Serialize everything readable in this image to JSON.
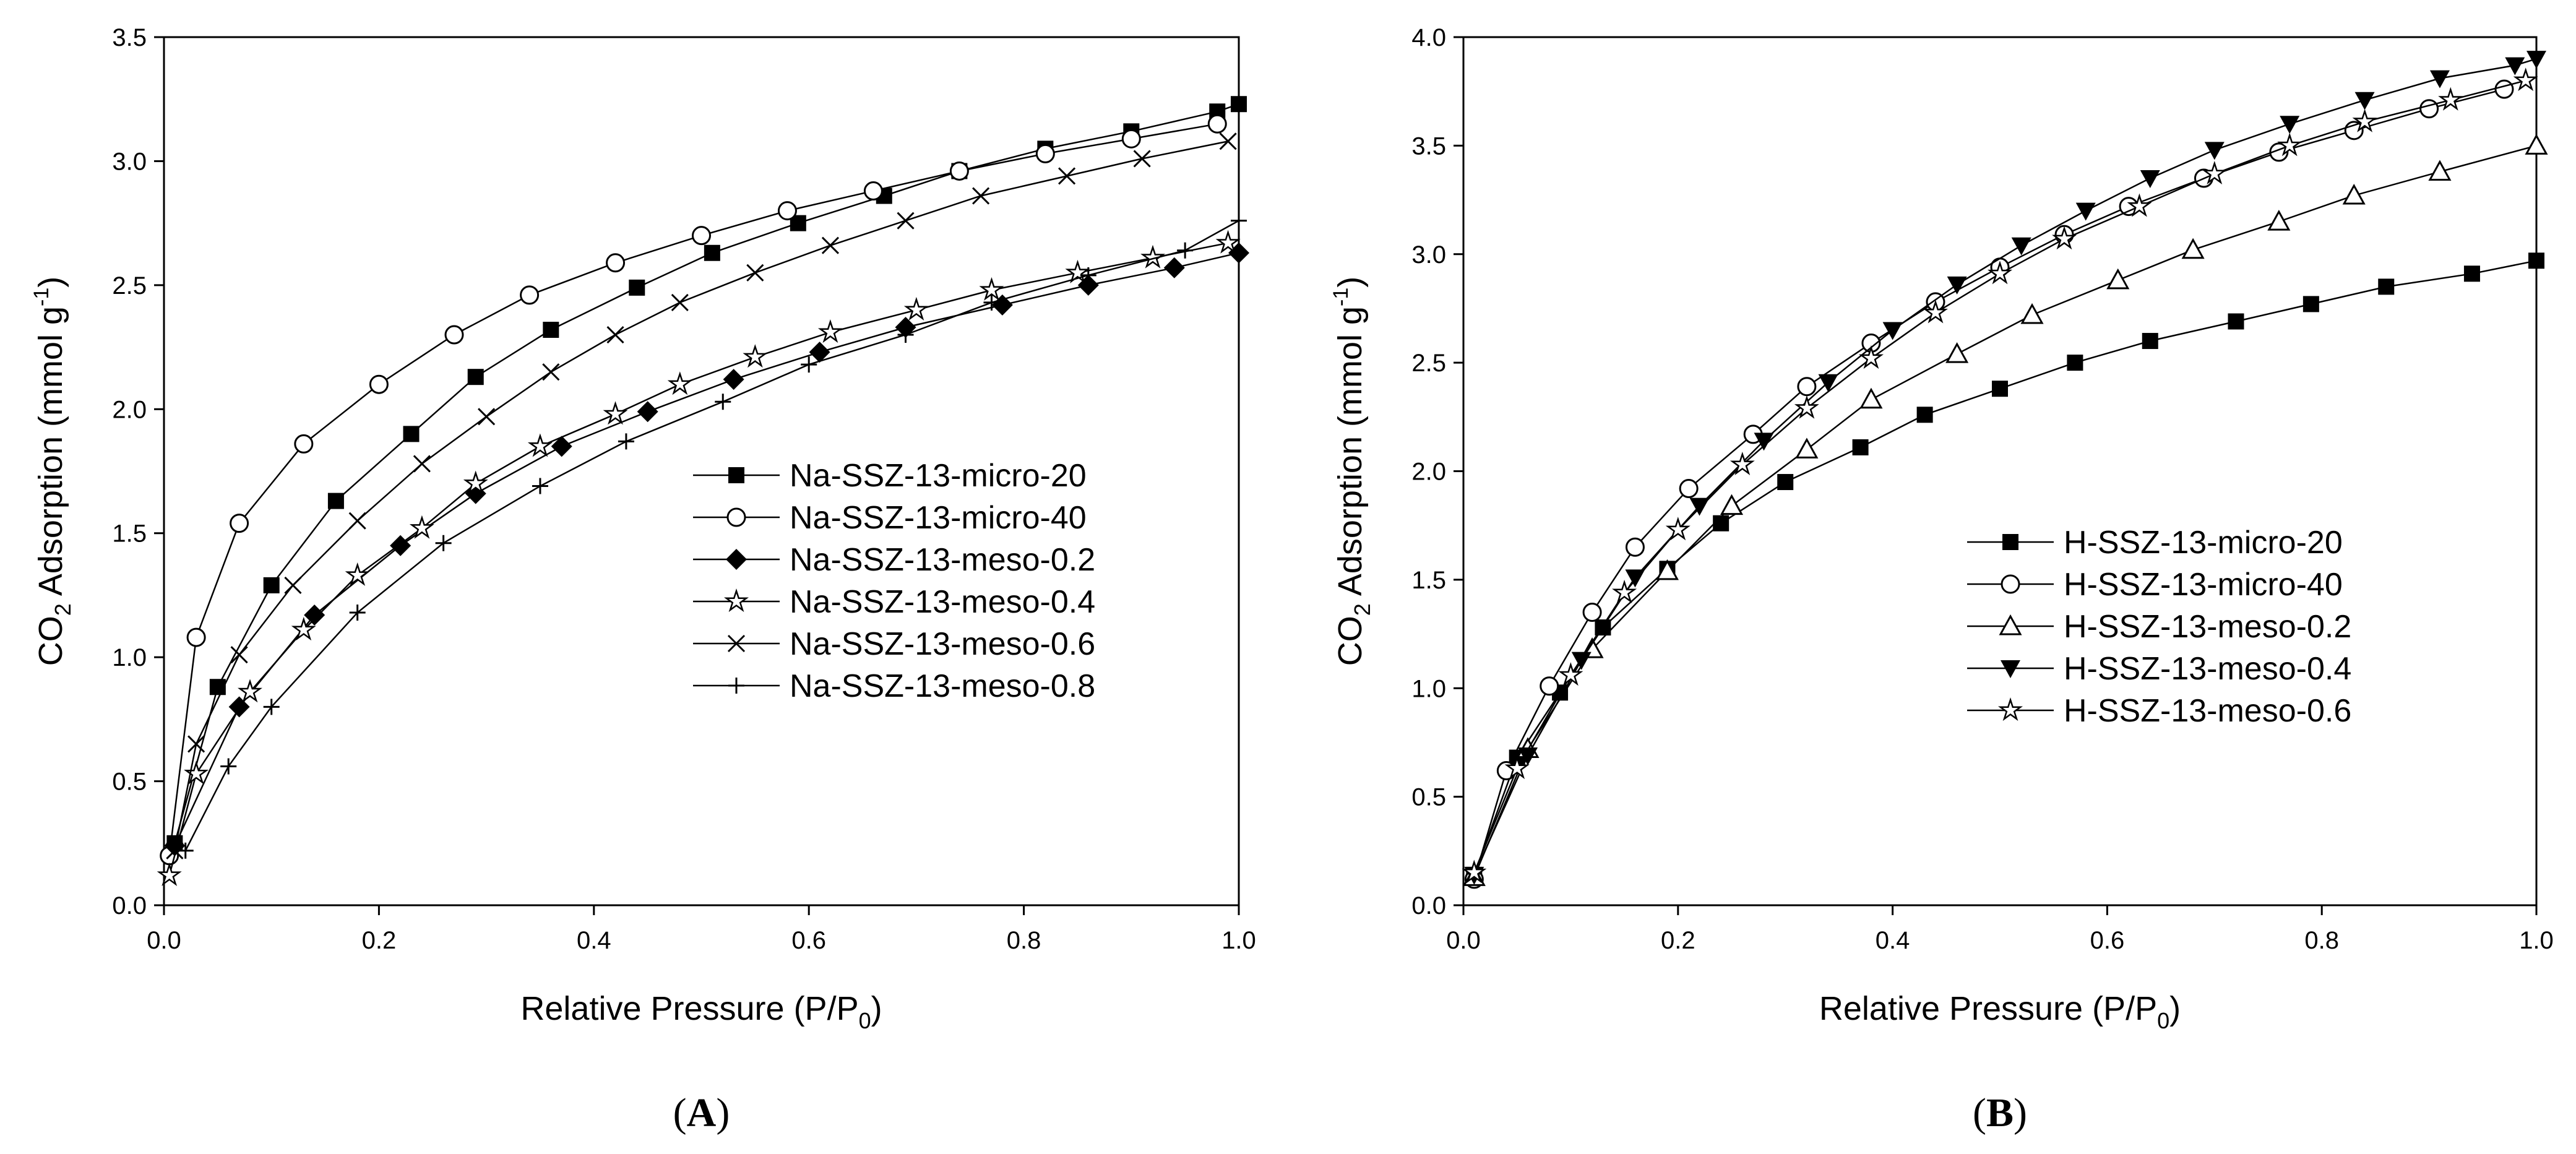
{
  "chart_data": [
    {
      "type": "line",
      "panel_label": "A",
      "xlabel": "Relative Pressure (P/P0)",
      "ylabel": "CO2 Adsorption (mmol g-1)",
      "xlim": [
        0,
        1.0
      ],
      "ylim": [
        0,
        3.5
      ],
      "xticks": [
        "0.0",
        "0.2",
        "0.4",
        "0.6",
        "0.8",
        "1.0"
      ],
      "yticks": [
        "0.0",
        "0.5",
        "1.0",
        "1.5",
        "2.0",
        "2.5",
        "3.0",
        "3.5"
      ],
      "legend_position": "center-right",
      "series": [
        {
          "name": "Na-SSZ-13-micro-20",
          "marker": "filled-square",
          "x": [
            0.01,
            0.05,
            0.1,
            0.16,
            0.23,
            0.29,
            0.36,
            0.44,
            0.51,
            0.59,
            0.67,
            0.74,
            0.82,
            0.9,
            0.98,
            1.0
          ],
          "y": [
            0.25,
            0.88,
            1.29,
            1.63,
            1.9,
            2.13,
            2.32,
            2.49,
            2.63,
            2.75,
            2.86,
            2.96,
            3.05,
            3.12,
            3.2,
            3.23
          ]
        },
        {
          "name": "Na-SSZ-13-micro-40",
          "marker": "open-circle",
          "x": [
            0.005,
            0.03,
            0.07,
            0.13,
            0.2,
            0.27,
            0.34,
            0.42,
            0.5,
            0.58,
            0.66,
            0.74,
            0.82,
            0.9,
            0.98
          ],
          "y": [
            0.2,
            1.08,
            1.54,
            1.86,
            2.1,
            2.3,
            2.46,
            2.59,
            2.7,
            2.8,
            2.88,
            2.96,
            3.03,
            3.09,
            3.15
          ]
        },
        {
          "name": "Na-SSZ-13-meso-0.2",
          "marker": "filled-diamond",
          "x": [
            0.01,
            0.07,
            0.14,
            0.22,
            0.29,
            0.37,
            0.45,
            0.53,
            0.61,
            0.69,
            0.78,
            0.86,
            0.94,
            1.0
          ],
          "y": [
            0.24,
            0.8,
            1.17,
            1.45,
            1.66,
            1.85,
            1.99,
            2.12,
            2.23,
            2.33,
            2.42,
            2.5,
            2.57,
            2.63
          ]
        },
        {
          "name": "Na-SSZ-13-meso-0.4",
          "marker": "open-star",
          "x": [
            0.005,
            0.03,
            0.08,
            0.13,
            0.18,
            0.24,
            0.29,
            0.35,
            0.42,
            0.48,
            0.55,
            0.62,
            0.7,
            0.77,
            0.85,
            0.92,
            0.99
          ],
          "y": [
            0.12,
            0.53,
            0.86,
            1.11,
            1.33,
            1.52,
            1.7,
            1.85,
            1.98,
            2.1,
            2.21,
            2.31,
            2.4,
            2.48,
            2.55,
            2.61,
            2.67
          ]
        },
        {
          "name": "Na-SSZ-13-meso-0.6",
          "marker": "x-cross",
          "x": [
            0.01,
            0.03,
            0.07,
            0.12,
            0.18,
            0.24,
            0.3,
            0.36,
            0.42,
            0.48,
            0.55,
            0.62,
            0.69,
            0.76,
            0.84,
            0.91,
            0.99
          ],
          "y": [
            0.22,
            0.65,
            1.01,
            1.29,
            1.55,
            1.78,
            1.97,
            2.15,
            2.3,
            2.43,
            2.55,
            2.66,
            2.76,
            2.86,
            2.94,
            3.01,
            3.08
          ]
        },
        {
          "name": "Na-SSZ-13-meso-0.8",
          "marker": "plus",
          "x": [
            0.02,
            0.06,
            0.1,
            0.18,
            0.26,
            0.35,
            0.43,
            0.52,
            0.6,
            0.69,
            0.77,
            0.86,
            0.95,
            1.0
          ],
          "y": [
            0.22,
            0.56,
            0.8,
            1.18,
            1.46,
            1.69,
            1.87,
            2.03,
            2.18,
            2.3,
            2.43,
            2.54,
            2.64,
            2.76
          ]
        }
      ]
    },
    {
      "type": "line",
      "panel_label": "B",
      "xlabel": "Relative Pressure (P/P0)",
      "ylabel": "CO2 Adsorption (mmol g-1)",
      "xlim": [
        0,
        1.0
      ],
      "ylim": [
        0,
        4.0
      ],
      "xticks": [
        "0.0",
        "0.2",
        "0.4",
        "0.6",
        "0.8",
        "1.0"
      ],
      "yticks": [
        "0.0",
        "0.5",
        "1.0",
        "1.5",
        "2.0",
        "2.5",
        "3.0",
        "3.5",
        "4.0"
      ],
      "legend_position": "bottom-right",
      "series": [
        {
          "name": "H-SSZ-13-micro-20",
          "marker": "filled-square",
          "x": [
            0.01,
            0.05,
            0.09,
            0.13,
            0.19,
            0.24,
            0.3,
            0.37,
            0.43,
            0.5,
            0.57,
            0.64,
            0.72,
            0.79,
            0.86,
            0.94,
            1.0
          ],
          "y": [
            0.14,
            0.68,
            0.98,
            1.28,
            1.55,
            1.76,
            1.95,
            2.11,
            2.26,
            2.38,
            2.5,
            2.6,
            2.69,
            2.77,
            2.85,
            2.91,
            2.97
          ]
        },
        {
          "name": "H-SSZ-13-micro-40",
          "marker": "open-circle",
          "x": [
            0.01,
            0.04,
            0.08,
            0.12,
            0.16,
            0.21,
            0.27,
            0.32,
            0.38,
            0.44,
            0.5,
            0.56,
            0.62,
            0.69,
            0.76,
            0.83,
            0.9,
            0.97
          ],
          "y": [
            0.12,
            0.62,
            1.01,
            1.35,
            1.65,
            1.92,
            2.17,
            2.39,
            2.59,
            2.78,
            2.94,
            3.09,
            3.22,
            3.35,
            3.47,
            3.57,
            3.67,
            3.76
          ]
        },
        {
          "name": "H-SSZ-13-meso-0.2",
          "marker": "open-triangle",
          "x": [
            0.01,
            0.06,
            0.12,
            0.19,
            0.25,
            0.32,
            0.38,
            0.46,
            0.53,
            0.61,
            0.68,
            0.76,
            0.83,
            0.91,
            1.0
          ],
          "y": [
            0.13,
            0.72,
            1.18,
            1.54,
            1.84,
            2.1,
            2.33,
            2.54,
            2.72,
            2.88,
            3.02,
            3.15,
            3.27,
            3.38,
            3.5
          ]
        },
        {
          "name": "H-SSZ-13-meso-0.4",
          "marker": "filled-triangle-down",
          "x": [
            0.01,
            0.06,
            0.11,
            0.16,
            0.22,
            0.28,
            0.34,
            0.4,
            0.46,
            0.52,
            0.58,
            0.64,
            0.7,
            0.77,
            0.84,
            0.91,
            0.98,
            1.0
          ],
          "y": [
            0.14,
            0.69,
            1.13,
            1.51,
            1.84,
            2.14,
            2.41,
            2.65,
            2.86,
            3.04,
            3.2,
            3.35,
            3.48,
            3.6,
            3.71,
            3.81,
            3.87,
            3.9
          ]
        },
        {
          "name": "H-SSZ-13-meso-0.6",
          "marker": "open-star",
          "x": [
            0.01,
            0.05,
            0.1,
            0.15,
            0.2,
            0.26,
            0.32,
            0.38,
            0.44,
            0.5,
            0.56,
            0.63,
            0.7,
            0.77,
            0.84,
            0.92,
            0.99
          ],
          "y": [
            0.15,
            0.63,
            1.06,
            1.44,
            1.73,
            2.03,
            2.29,
            2.52,
            2.73,
            2.91,
            3.07,
            3.22,
            3.37,
            3.5,
            3.61,
            3.71,
            3.8
          ]
        }
      ]
    }
  ]
}
